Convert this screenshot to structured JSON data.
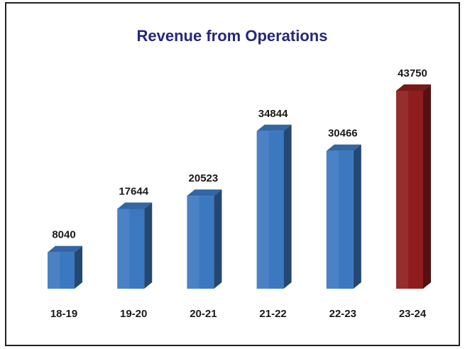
{
  "chart_data": {
    "type": "bar3d",
    "title": "Revenue from Operations",
    "categories": [
      "18-19",
      "19-20",
      "20-21",
      "21-22",
      "22-23",
      "23-24"
    ],
    "values": [
      8040,
      17644,
      20523,
      34844,
      30466,
      43750
    ],
    "colors": [
      "#3c78c0",
      "#3c78c0",
      "#3c78c0",
      "#3c78c0",
      "#3c78c0",
      "#8e1d1d"
    ]
  }
}
